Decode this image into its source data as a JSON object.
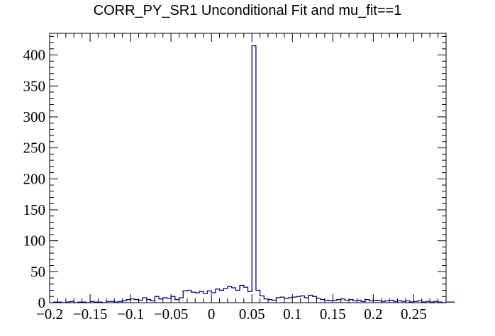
{
  "chart_data": {
    "type": "bar",
    "title": "CORR_PY_SR1 Unconditional Fit and mu_fit==1",
    "xlabel": "",
    "ylabel": "",
    "xlim": [
      -0.2,
      0.29
    ],
    "ylim": [
      0,
      435
    ],
    "bin_width": 0.005,
    "x_start": -0.2,
    "values": [
      0,
      1,
      1,
      0,
      1,
      2,
      0,
      1,
      1,
      0,
      2,
      1,
      1,
      0,
      2,
      2,
      1,
      2,
      3,
      5,
      6,
      5,
      4,
      8,
      5,
      3,
      10,
      6,
      8,
      7,
      10,
      5,
      8,
      19,
      20,
      17,
      16,
      18,
      15,
      19,
      16,
      22,
      20,
      23,
      26,
      24,
      20,
      28,
      25,
      18,
      415,
      20,
      11,
      6,
      5,
      4,
      8,
      9,
      7,
      8,
      9,
      10,
      11,
      8,
      12,
      10,
      7,
      5,
      4,
      3,
      4,
      5,
      6,
      4,
      5,
      3,
      4,
      2,
      5,
      3,
      4,
      3,
      2,
      3,
      4,
      2,
      3,
      2,
      3,
      1,
      2,
      3,
      1,
      2,
      1,
      2,
      1,
      0,
      1,
      1
    ],
    "color": "#000080",
    "x_ticks": [
      "−0.2",
      "−0.15",
      "−0.1",
      "−0.05",
      "0",
      "0.05",
      "0.1",
      "0.15",
      "0.2",
      "0.25"
    ],
    "x_tick_values": [
      -0.2,
      -0.15,
      -0.1,
      -0.05,
      0,
      0.05,
      0.1,
      0.15,
      0.2,
      0.25
    ],
    "y_ticks": [
      "0",
      "50",
      "100",
      "150",
      "200",
      "250",
      "300",
      "350",
      "400"
    ],
    "y_tick_values": [
      0,
      50,
      100,
      150,
      200,
      250,
      300,
      350,
      400
    ]
  }
}
